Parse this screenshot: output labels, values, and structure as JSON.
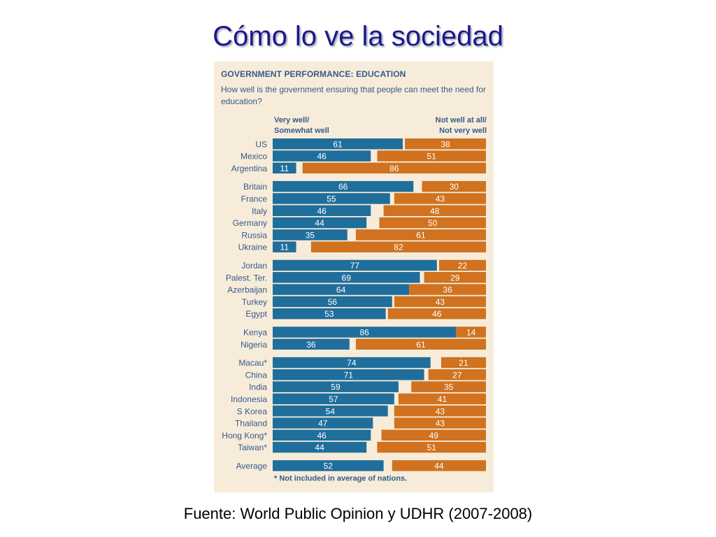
{
  "slide": {
    "title": "Cómo lo ve la sociedad",
    "source": "Fuente: World Public Opinion y UDHR (2007-2008)"
  },
  "colors": {
    "well": "#1f6e9c",
    "not_well": "#d0721f",
    "panel_bg": "#f7ecd9",
    "text": "#345a8c",
    "title": "#1a1a8c"
  },
  "chart_data": {
    "type": "bar",
    "orientation": "horizontal",
    "stacked": true,
    "title": "GOVERNMENT PERFORMANCE: EDUCATION",
    "subtitle": "How well is the government ensuring that people can meet the need for education?",
    "legend": {
      "left": [
        "Very well/",
        "Somewhat well"
      ],
      "right": [
        "Not well at all/",
        "Not very well"
      ]
    },
    "series": [
      {
        "name": "Very well/Somewhat well",
        "color": "#1f6e9c"
      },
      {
        "name": "Not well at all/Not very well",
        "color": "#d0721f"
      }
    ],
    "groups": [
      [
        {
          "country": "US",
          "well": 61,
          "not_well": 38
        },
        {
          "country": "Mexico",
          "well": 46,
          "not_well": 51
        },
        {
          "country": "Argentina",
          "well": 11,
          "not_well": 86
        }
      ],
      [
        {
          "country": "Britain",
          "well": 66,
          "not_well": 30
        },
        {
          "country": "France",
          "well": 55,
          "not_well": 43
        },
        {
          "country": "Italy",
          "well": 46,
          "not_well": 48
        },
        {
          "country": "Germany",
          "well": 44,
          "not_well": 50
        },
        {
          "country": "Russia",
          "well": 35,
          "not_well": 61
        },
        {
          "country": "Ukraine",
          "well": 11,
          "not_well": 82
        }
      ],
      [
        {
          "country": "Jordan",
          "well": 77,
          "not_well": 22
        },
        {
          "country": "Palest. Ter.",
          "well": 69,
          "not_well": 29
        },
        {
          "country": "Azerbaijan",
          "well": 64,
          "not_well": 36
        },
        {
          "country": "Turkey",
          "well": 56,
          "not_well": 43
        },
        {
          "country": "Egypt",
          "well": 53,
          "not_well": 46
        }
      ],
      [
        {
          "country": "Kenya",
          "well": 86,
          "not_well": 14
        },
        {
          "country": "Nigeria",
          "well": 36,
          "not_well": 61
        }
      ],
      [
        {
          "country": "Macau*",
          "well": 74,
          "not_well": 21
        },
        {
          "country": "China",
          "well": 71,
          "not_well": 27
        },
        {
          "country": "India",
          "well": 59,
          "not_well": 35
        },
        {
          "country": "Indonesia",
          "well": 57,
          "not_well": 41
        },
        {
          "country": "S Korea",
          "well": 54,
          "not_well": 43
        },
        {
          "country": "Thailand",
          "well": 47,
          "not_well": 43
        },
        {
          "country": "Hong Kong*",
          "well": 46,
          "not_well": 49
        },
        {
          "country": "Taiwan*",
          "well": 44,
          "not_well": 51
        }
      ],
      [
        {
          "country": "Average",
          "well": 52,
          "not_well": 44
        }
      ]
    ],
    "xlim": [
      0,
      100
    ],
    "footnote": "* Not included in average of nations."
  }
}
